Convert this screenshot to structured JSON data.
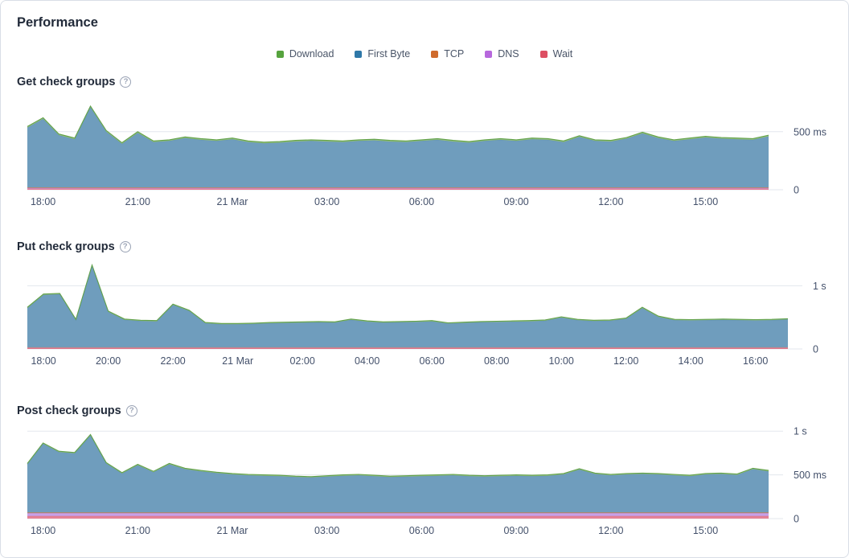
{
  "page_title": "Performance",
  "legend": {
    "items": [
      {
        "label": "Download",
        "color": "#56a33e"
      },
      {
        "label": "First Byte",
        "color": "#2f78a8"
      },
      {
        "label": "TCP",
        "color": "#cf6a2c"
      },
      {
        "label": "DNS",
        "color": "#b768dd"
      },
      {
        "label": "Wait",
        "color": "#dd4f63"
      }
    ]
  },
  "help_icon_glyph": "?",
  "chart_data": [
    {
      "type": "area",
      "title": "Get check groups",
      "unit": "ms",
      "x_domain": [
        17.5,
        41
      ],
      "x_ticks": [
        {
          "t": 18,
          "label": "18:00"
        },
        {
          "t": 21,
          "label": "21:00"
        },
        {
          "t": 24,
          "label": "21 Mar"
        },
        {
          "t": 27,
          "label": "03:00"
        },
        {
          "t": 30,
          "label": "06:00"
        },
        {
          "t": 33,
          "label": "09:00"
        },
        {
          "t": 36,
          "label": "12:00"
        },
        {
          "t": 39,
          "label": "15:00"
        }
      ],
      "y_ticks": [
        {
          "value": 0,
          "label": "0"
        },
        {
          "value": 500,
          "label": "500 ms"
        }
      ],
      "ylim": [
        0,
        810
      ],
      "series": [
        {
          "name": "Wait",
          "color": "#d9687e",
          "fill": "#e58296",
          "values": 10
        },
        {
          "name": "DNS",
          "color": "#bf93e4",
          "fill": "#c6a1e8",
          "values": 6
        },
        {
          "name": "TCP",
          "color": "#c97b45",
          "fill": "#d18b58",
          "values": 4
        },
        {
          "name": "First Byte",
          "color": "#6495b8",
          "fill": "#6f9dbd",
          "values": [
            515,
            590,
            450,
            415,
            690,
            480,
            375,
            470,
            390,
            400,
            425,
            410,
            400,
            415,
            390,
            380,
            385,
            395,
            400,
            395,
            390,
            400,
            405,
            395,
            390,
            400,
            410,
            395,
            385,
            400,
            410,
            400,
            415,
            410,
            390,
            435,
            400,
            395,
            420,
            465,
            425,
            400,
            415,
            430,
            420,
            415,
            410,
            440
          ]
        },
        {
          "name": "Download",
          "color": "#61a14a",
          "fill": "#97c07e",
          "values": 10
        }
      ]
    },
    {
      "type": "area",
      "title": "Put check groups",
      "unit": "ms",
      "x_domain": [
        17.5,
        41
      ],
      "x_ticks": [
        {
          "t": 18,
          "label": "18:00"
        },
        {
          "t": 20,
          "label": "20:00"
        },
        {
          "t": 22,
          "label": "22:00"
        },
        {
          "t": 24,
          "label": "21 Mar"
        },
        {
          "t": 26,
          "label": "02:00"
        },
        {
          "t": 28,
          "label": "04:00"
        },
        {
          "t": 30,
          "label": "06:00"
        },
        {
          "t": 32,
          "label": "08:00"
        },
        {
          "t": 34,
          "label": "10:00"
        },
        {
          "t": 36,
          "label": "12:00"
        },
        {
          "t": 38,
          "label": "14:00"
        },
        {
          "t": 40,
          "label": "16:00"
        }
      ],
      "y_ticks": [
        {
          "value": 0,
          "label": "0"
        },
        {
          "value": 1000,
          "label": "1 s"
        }
      ],
      "ylim": [
        0,
        1400
      ],
      "series": [
        {
          "name": "Wait",
          "color": "#d9687e",
          "fill": "#e58296",
          "values": 14
        },
        {
          "name": "DNS",
          "color": "#bf93e4",
          "fill": "#c6a1e8",
          "values": 8
        },
        {
          "name": "TCP",
          "color": "#c97b45",
          "fill": "#d18b58",
          "values": 5
        },
        {
          "name": "First Byte",
          "color": "#6495b8",
          "fill": "#6f9dbd",
          "values": [
            620,
            830,
            840,
            430,
            1290,
            560,
            435,
            415,
            410,
            670,
            575,
            380,
            365,
            365,
            370,
            380,
            385,
            390,
            395,
            390,
            435,
            405,
            390,
            395,
            400,
            410,
            375,
            385,
            395,
            400,
            405,
            410,
            420,
            470,
            430,
            415,
            420,
            450,
            620,
            480,
            430,
            425,
            430,
            435,
            430,
            425,
            430,
            440
          ]
        },
        {
          "name": "Download",
          "color": "#61a14a",
          "fill": "#97c07e",
          "values": 12
        }
      ]
    },
    {
      "type": "area",
      "title": "Post check groups",
      "unit": "ms",
      "x_domain": [
        17.5,
        41
      ],
      "x_ticks": [
        {
          "t": 18,
          "label": "18:00"
        },
        {
          "t": 21,
          "label": "21:00"
        },
        {
          "t": 24,
          "label": "21 Mar"
        },
        {
          "t": 27,
          "label": "03:00"
        },
        {
          "t": 30,
          "label": "06:00"
        },
        {
          "t": 33,
          "label": "09:00"
        },
        {
          "t": 36,
          "label": "12:00"
        },
        {
          "t": 39,
          "label": "15:00"
        }
      ],
      "y_ticks": [
        {
          "value": 0,
          "label": "0"
        },
        {
          "value": 500,
          "label": "500 ms"
        },
        {
          "value": 1000,
          "label": "1 s"
        }
      ],
      "ylim": [
        0,
        1075
      ],
      "series": [
        {
          "name": "Wait",
          "color": "#d9687e",
          "fill": "#e58296",
          "values": 30
        },
        {
          "name": "DNS",
          "color": "#bf93e4",
          "fill": "#c6a1e8",
          "values": 32
        },
        {
          "name": "TCP",
          "color": "#c97b45",
          "fill": "#d18b58",
          "values": 8
        },
        {
          "name": "First Byte",
          "color": "#6495b8",
          "fill": "#6f9dbd",
          "values": [
            550,
            785,
            690,
            675,
            880,
            560,
            445,
            540,
            460,
            550,
            495,
            470,
            450,
            435,
            425,
            420,
            415,
            405,
            400,
            410,
            420,
            425,
            415,
            405,
            410,
            415,
            420,
            425,
            415,
            410,
            415,
            420,
            415,
            420,
            435,
            490,
            440,
            425,
            435,
            440,
            435,
            425,
            415,
            435,
            440,
            430,
            495,
            470
          ]
        },
        {
          "name": "Download",
          "color": "#61a14a",
          "fill": "#97c07e",
          "values": 10
        }
      ]
    }
  ]
}
